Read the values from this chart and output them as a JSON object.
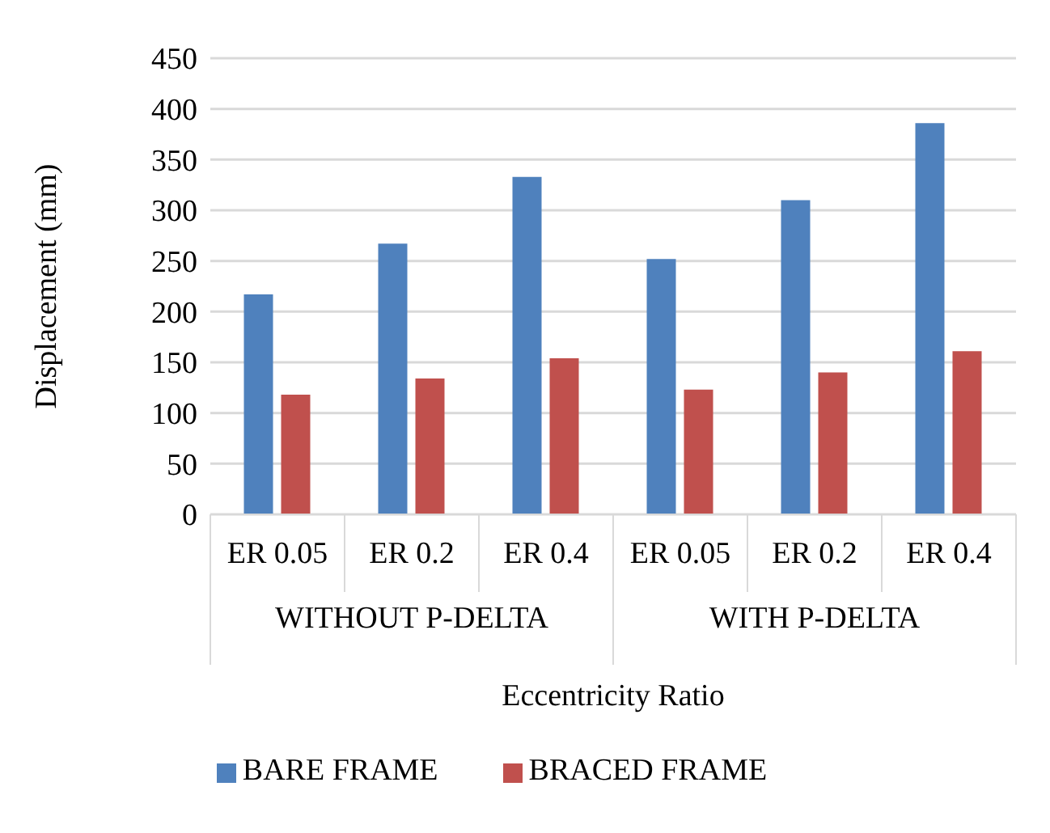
{
  "chart_data": {
    "type": "bar",
    "ylabel": "Displacement (mm)",
    "xlabel": "Eccentricity Ratio",
    "categories": [
      "ER 0.05",
      "ER 0.2",
      "ER 0.4",
      "ER 0.05",
      "ER 0.2",
      "ER 0.4"
    ],
    "annotations": [
      "WITHOUT P-DELTA",
      "WITH P-DELTA"
    ],
    "series": [
      {
        "name": "BARE FRAME",
        "color": "#4f81bd",
        "values": [
          217,
          267,
          333,
          252,
          310,
          386
        ]
      },
      {
        "name": "BRACED FRAME",
        "color": "#c0504d",
        "values": [
          118,
          134,
          154,
          123,
          140,
          161
        ]
      }
    ],
    "ylim": [
      0,
      450
    ],
    "yticks": [
      0,
      50,
      100,
      150,
      200,
      250,
      300,
      350,
      400,
      450
    ],
    "grid": "y",
    "legend": "bottom"
  }
}
